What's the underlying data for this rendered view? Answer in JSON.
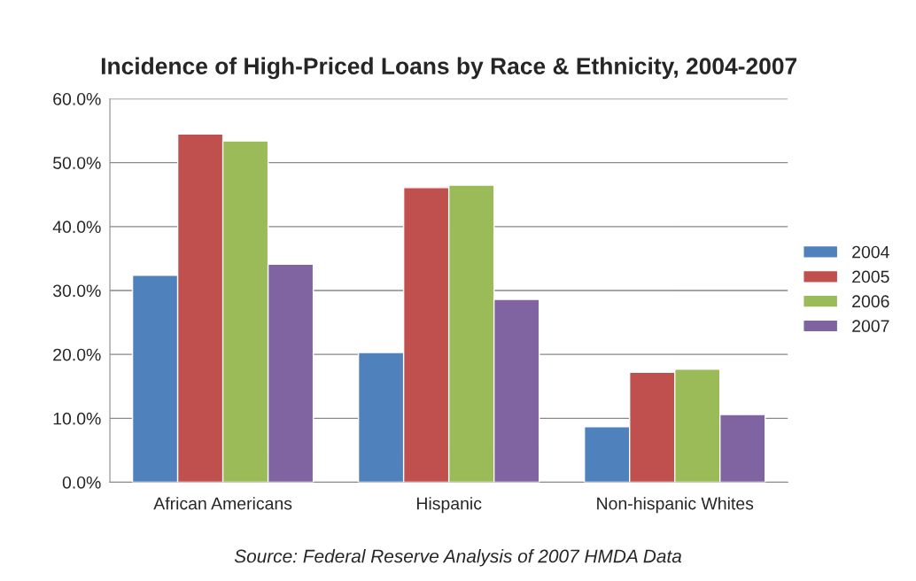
{
  "chart_data": {
    "type": "bar",
    "title": "Incidence of High-Priced Loans by Race & Ethnicity, 2004-2007",
    "categories": [
      "African Americans",
      "Hispanic",
      "Non-hispanic Whites"
    ],
    "series": [
      {
        "name": "2004",
        "color": "#4f81bd",
        "values": [
          32.4,
          20.3,
          8.7
        ]
      },
      {
        "name": "2005",
        "color": "#c0504d",
        "values": [
          54.5,
          46.1,
          17.2
        ]
      },
      {
        "name": "2006",
        "color": "#9bbb59",
        "values": [
          53.4,
          46.5,
          17.7
        ]
      },
      {
        "name": "2007",
        "color": "#8064a2",
        "values": [
          34.1,
          28.6,
          10.6
        ]
      }
    ],
    "ylim": [
      0,
      60
    ],
    "yticks": [
      {
        "value": 0,
        "label": "0.0%"
      },
      {
        "value": 10,
        "label": "10.0%"
      },
      {
        "value": 20,
        "label": "20.0%"
      },
      {
        "value": 30,
        "label": "30.0%"
      },
      {
        "value": 40,
        "label": "40.0%"
      },
      {
        "value": 50,
        "label": "50.0%"
      },
      {
        "value": 60,
        "label": "60.0%"
      }
    ],
    "grid": "y",
    "legend": "right",
    "annotations": [
      "Source: Federal Reserve Analysis of 2007 HMDA Data"
    ]
  }
}
